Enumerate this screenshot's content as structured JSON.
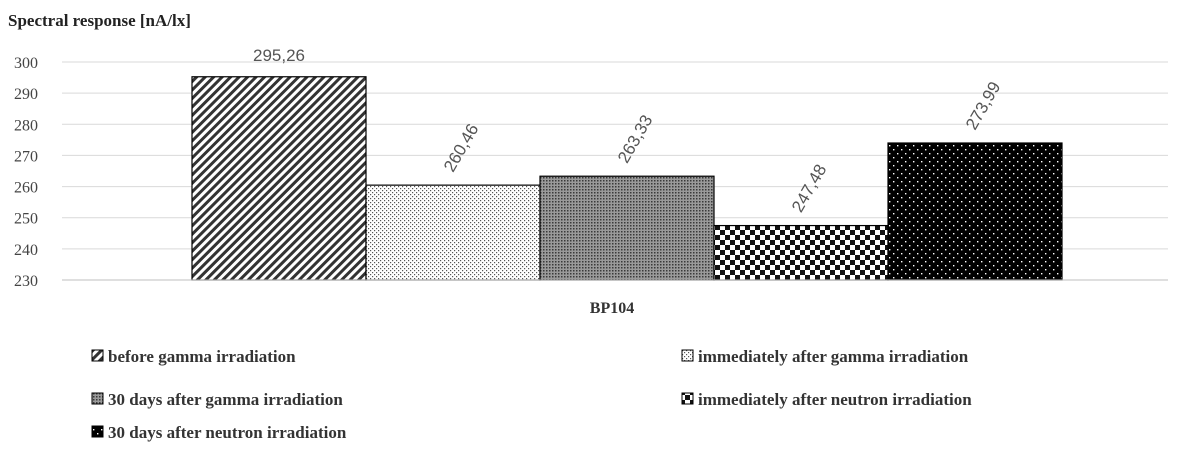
{
  "chart_data": {
    "type": "bar",
    "ylabel": "Spectral response [nA/lx]",
    "xlabel": "",
    "categories": [
      "BP104"
    ],
    "ylim": [
      230,
      300
    ],
    "yticks": [
      "230",
      "240",
      "250",
      "260",
      "270",
      "280",
      "290",
      "300"
    ],
    "grid": true,
    "legend_position": "bottom",
    "series": [
      {
        "name": "before gamma irradiation",
        "value": 295.26,
        "label": "295,26",
        "pattern": "diagonal-lines"
      },
      {
        "name": "immediately after gamma irradiation",
        "value": 260.46,
        "label": "260,46",
        "pattern": "fine-dots"
      },
      {
        "name": "30 days after gamma irradiation",
        "value": 263.33,
        "label": "263,33",
        "pattern": "dense-grid"
      },
      {
        "name": "immediately after neutron irradiation",
        "value": 247.48,
        "label": "247,48",
        "pattern": "checkerboard"
      },
      {
        "name": "30 days after neutron irradiation",
        "value": 273.99,
        "label": "273,99",
        "pattern": "white-dots-on-black"
      }
    ]
  }
}
